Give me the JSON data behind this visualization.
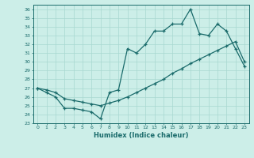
{
  "xlabel": "Humidex (Indice chaleur)",
  "bg_color": "#cceee8",
  "line_color": "#1a6b6b",
  "grid_color": "#a8d8d0",
  "xlim": [
    -0.5,
    23.5
  ],
  "ylim": [
    23,
    36.5
  ],
  "yticks": [
    23,
    24,
    25,
    26,
    27,
    28,
    29,
    30,
    31,
    32,
    33,
    34,
    35,
    36
  ],
  "xticks": [
    0,
    1,
    2,
    3,
    4,
    5,
    6,
    7,
    8,
    9,
    10,
    11,
    12,
    13,
    14,
    15,
    16,
    17,
    18,
    19,
    20,
    21,
    22,
    23
  ],
  "line1_x": [
    0,
    1,
    2,
    3,
    4,
    5,
    6,
    7,
    8,
    9,
    10,
    11,
    12,
    13,
    14,
    15,
    16,
    17,
    18,
    19,
    20,
    21,
    22,
    23
  ],
  "line1_y": [
    27,
    26.5,
    26,
    24.7,
    24.7,
    24.5,
    24.3,
    23.5,
    26.5,
    26.8,
    31.5,
    31.0,
    32.0,
    33.5,
    33.5,
    34.3,
    34.3,
    36.0,
    33.2,
    33.0,
    34.3,
    33.5,
    31.5,
    29.5
  ],
  "line2_x": [
    0,
    1,
    2,
    3,
    4,
    5,
    6,
    7,
    8,
    9,
    10,
    11,
    12,
    13,
    14,
    15,
    16,
    17,
    18,
    19,
    20,
    21,
    22,
    23
  ],
  "line2_y": [
    27,
    26.8,
    26.5,
    25.8,
    25.6,
    25.4,
    25.2,
    25.0,
    25.3,
    25.6,
    26.0,
    26.5,
    27.0,
    27.5,
    28.0,
    28.7,
    29.2,
    29.8,
    30.3,
    30.8,
    31.3,
    31.8,
    32.3,
    30.0
  ]
}
